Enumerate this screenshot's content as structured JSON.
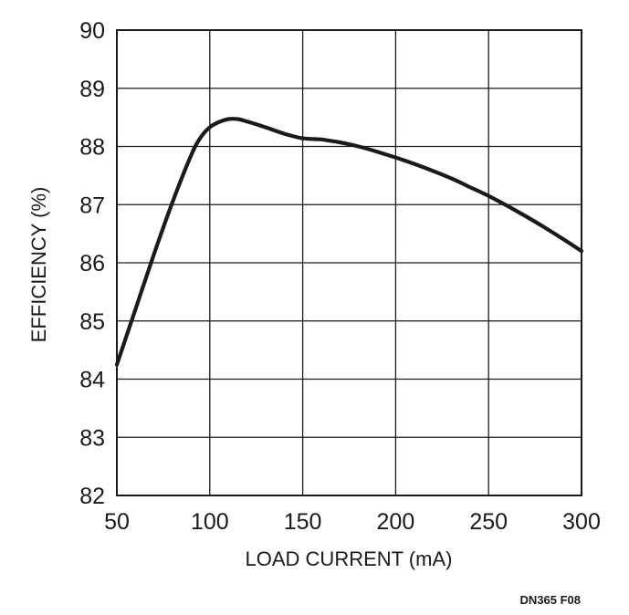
{
  "chart_data": {
    "type": "line",
    "xlabel": "LOAD CURRENT (mA)",
    "ylabel": "EFFICIENCY (%)",
    "xlim": [
      50,
      300
    ],
    "ylim": [
      82,
      90
    ],
    "x_ticks": [
      "50",
      "100",
      "150",
      "200",
      "250",
      "300"
    ],
    "y_ticks": [
      "82",
      "83",
      "84",
      "85",
      "86",
      "87",
      "88",
      "89",
      "90"
    ],
    "grid": true,
    "figure_id": "DN365 F08",
    "series": [
      {
        "x": [
          50,
          60,
          70,
          80,
          90,
          95,
          100,
          105,
          110,
          115,
          120,
          130,
          140,
          150,
          160,
          170,
          180,
          190,
          200,
          210,
          220,
          230,
          240,
          250,
          260,
          270,
          280,
          290,
          300
        ],
        "y": [
          84.25,
          85.2,
          86.15,
          87.05,
          87.85,
          88.15,
          88.33,
          88.42,
          88.47,
          88.47,
          88.43,
          88.33,
          88.22,
          88.14,
          88.12,
          88.07,
          88.0,
          87.91,
          87.81,
          87.7,
          87.58,
          87.45,
          87.3,
          87.15,
          86.98,
          86.8,
          86.61,
          86.41,
          86.2
        ]
      }
    ],
    "colors": {
      "line": "#1a1a1a",
      "grid": "#1a1a1a",
      "frame": "#1a1a1a"
    }
  }
}
